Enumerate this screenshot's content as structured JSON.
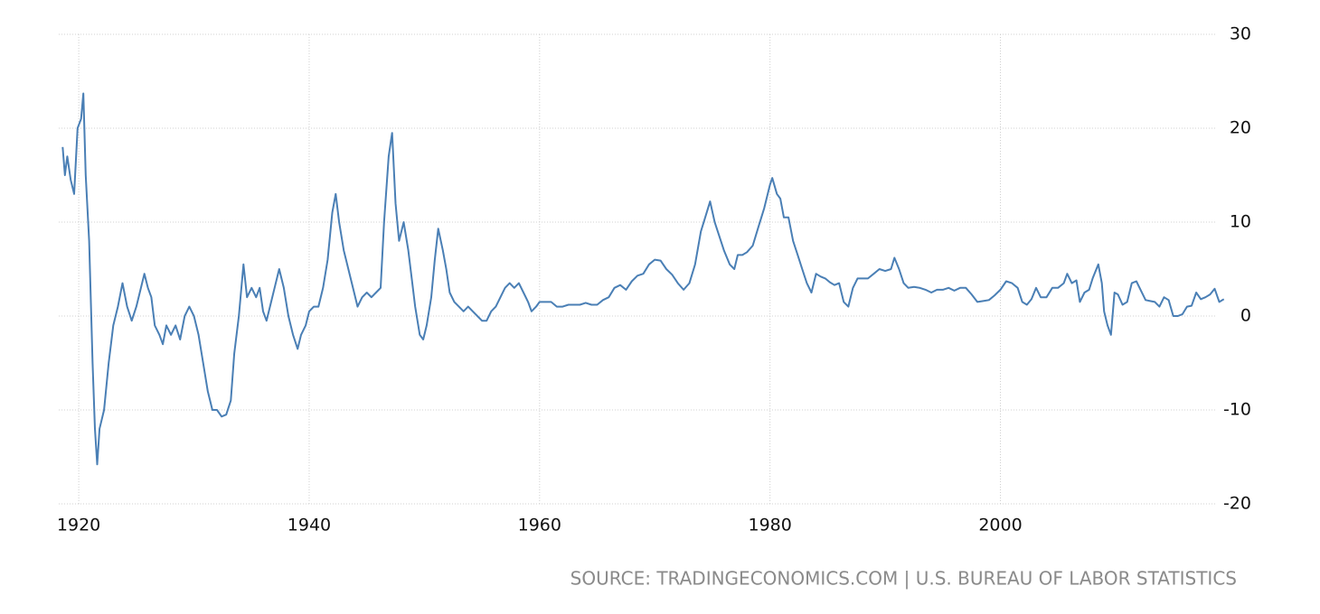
{
  "chart_data": {
    "type": "line",
    "source": "SOURCE: TRADINGECONOMICS.COM | U.S. BUREAU OF LABOR STATISTICS",
    "color": "#4a7fb5",
    "grid": true,
    "xlim": [
      1918.5,
      2019.5
    ],
    "xticks": [
      1920,
      1940,
      1960,
      1980,
      2000
    ],
    "ylim": [
      -20,
      30
    ],
    "yticks": [
      -20,
      -10,
      0,
      10,
      20,
      30
    ],
    "x": [
      1918.6,
      1918.8,
      1919.0,
      1919.3,
      1919.6,
      1919.9,
      1920.2,
      1920.4,
      1920.6,
      1920.9,
      1921.2,
      1921.4,
      1921.6,
      1921.8,
      1922.2,
      1922.6,
      1923.0,
      1923.4,
      1923.8,
      1924.2,
      1924.6,
      1925.0,
      1925.4,
      1925.7,
      1926.0,
      1926.3,
      1926.6,
      1927.0,
      1927.3,
      1927.6,
      1928.0,
      1928.4,
      1928.8,
      1929.2,
      1929.6,
      1930.0,
      1930.4,
      1930.8,
      1931.2,
      1931.6,
      1932.0,
      1932.4,
      1932.8,
      1933.2,
      1933.5,
      1933.9,
      1934.3,
      1934.6,
      1935.0,
      1935.4,
      1935.7,
      1936.0,
      1936.3,
      1936.7,
      1937.0,
      1937.4,
      1937.8,
      1938.2,
      1938.6,
      1939.0,
      1939.3,
      1939.7,
      1940.0,
      1940.4,
      1940.8,
      1941.2,
      1941.6,
      1942.0,
      1942.3,
      1942.6,
      1943.0,
      1943.4,
      1943.8,
      1944.2,
      1944.6,
      1945.0,
      1945.4,
      1945.8,
      1946.2,
      1946.5,
      1946.9,
      1947.2,
      1947.5,
      1947.8,
      1948.2,
      1948.6,
      1948.9,
      1949.2,
      1949.6,
      1949.9,
      1950.2,
      1950.6,
      1950.9,
      1951.2,
      1951.6,
      1951.9,
      1952.2,
      1952.6,
      1953.0,
      1953.4,
      1953.8,
      1954.2,
      1954.6,
      1955.0,
      1955.4,
      1955.8,
      1956.2,
      1956.6,
      1957.0,
      1957.4,
      1957.8,
      1958.2,
      1958.6,
      1959.0,
      1959.3,
      1959.7,
      1960.0,
      1960.5,
      1961.0,
      1961.5,
      1962.0,
      1962.5,
      1963.0,
      1963.5,
      1964.0,
      1964.5,
      1965.0,
      1965.5,
      1966.0,
      1966.5,
      1967.0,
      1967.5,
      1968.0,
      1968.5,
      1969.0,
      1969.5,
      1970.0,
      1970.5,
      1971.0,
      1971.5,
      1972.0,
      1972.5,
      1973.0,
      1973.5,
      1974.0,
      1974.5,
      1974.8,
      1975.2,
      1975.6,
      1976.0,
      1976.5,
      1976.9,
      1977.2,
      1977.6,
      1978.0,
      1978.5,
      1979.0,
      1979.5,
      1980.0,
      1980.2,
      1980.6,
      1980.9,
      1981.2,
      1981.6,
      1982.0,
      1982.4,
      1982.8,
      1983.2,
      1983.6,
      1984.0,
      1984.4,
      1984.8,
      1985.2,
      1985.6,
      1986.0,
      1986.4,
      1986.8,
      1987.2,
      1987.6,
      1988.0,
      1988.5,
      1989.0,
      1989.5,
      1990.0,
      1990.5,
      1990.8,
      1991.2,
      1991.6,
      1992.0,
      1992.5,
      1993.0,
      1993.5,
      1994.0,
      1994.5,
      1995.0,
      1995.5,
      1996.0,
      1996.5,
      1997.0,
      1997.5,
      1998.0,
      1998.5,
      1999.0,
      1999.5,
      2000.0,
      2000.5,
      2001.0,
      2001.5,
      2001.9,
      2002.3,
      2002.7,
      2003.1,
      2003.5,
      2004.0,
      2004.5,
      2005.0,
      2005.5,
      2005.8,
      2006.2,
      2006.6,
      2006.9,
      2007.3,
      2007.7,
      2008.0,
      2008.5,
      2008.8,
      2009.0,
      2009.3,
      2009.6,
      2009.9,
      2010.2,
      2010.6,
      2011.0,
      2011.4,
      2011.8,
      2012.2,
      2012.6,
      2013.0,
      2013.4,
      2013.8,
      2014.2,
      2014.6,
      2015.0,
      2015.4,
      2015.8,
      2016.2,
      2016.6,
      2017.0,
      2017.4,
      2017.8,
      2018.2,
      2018.6,
      2019.0,
      2019.4
    ],
    "values": [
      18,
      15,
      17,
      14.5,
      13,
      20,
      21,
      23.7,
      15,
      8,
      -5,
      -12,
      -15.8,
      -12,
      -10,
      -5,
      -1,
      1,
      3.5,
      1,
      -0.5,
      1,
      3,
      4.5,
      3,
      2,
      -1,
      -2,
      -3,
      -1,
      -2,
      -1,
      -2.5,
      0,
      1,
      0,
      -2,
      -5,
      -8,
      -10,
      -10,
      -10.7,
      -10.5,
      -9,
      -4,
      0,
      5.5,
      2,
      3,
      2,
      3,
      0.5,
      -0.5,
      1.5,
      3,
      5,
      3,
      0,
      -2,
      -3.5,
      -2,
      -1,
      0.5,
      1,
      1,
      3,
      6,
      11,
      13,
      10,
      7,
      5,
      3,
      1,
      2,
      2.5,
      2,
      2.5,
      3,
      10,
      17,
      19.5,
      12,
      8,
      10,
      7,
      4,
      1,
      -2,
      -2.5,
      -1,
      2,
      6,
      9.3,
      7,
      5,
      2.5,
      1.5,
      1,
      0.5,
      1,
      0.5,
      0,
      -0.5,
      -0.5,
      0.5,
      1,
      2,
      3,
      3.5,
      3,
      3.5,
      2.5,
      1.5,
      0.5,
      1,
      1.5,
      1.5,
      1.5,
      1,
      1,
      1.2,
      1.2,
      1.2,
      1.4,
      1.2,
      1.2,
      1.7,
      2,
      3,
      3.3,
      2.8,
      3.7,
      4.3,
      4.5,
      5.5,
      6,
      5.9,
      5,
      4.4,
      3.5,
      2.8,
      3.5,
      5.5,
      9,
      11,
      12.2,
      10,
      8.5,
      7,
      5.5,
      5,
      6.5,
      6.5,
      6.8,
      7.5,
      9.5,
      11.5,
      14,
      14.7,
      13,
      12.5,
      10.5,
      10.5,
      8,
      6.5,
      5,
      3.5,
      2.5,
      4.5,
      4.2,
      4,
      3.6,
      3.3,
      3.5,
      1.5,
      1,
      3,
      4,
      4,
      4,
      4.5,
      5,
      4.8,
      5,
      6.2,
      5,
      3.5,
      3,
      3.1,
      3,
      2.8,
      2.5,
      2.8,
      2.8,
      3,
      2.7,
      3,
      3,
      2.3,
      1.5,
      1.6,
      1.7,
      2.2,
      2.8,
      3.7,
      3.5,
      3,
      1.5,
      1.2,
      1.8,
      3,
      2,
      2,
      3,
      3,
      3.5,
      4.5,
      3.5,
      3.8,
      1.5,
      2.5,
      2.8,
      4,
      5.5,
      3.5,
      0.5,
      -1,
      -2,
      2.5,
      2.3,
      1.2,
      1.5,
      3.5,
      3.7,
      2.7,
      1.7,
      1.6,
      1.5,
      1,
      2,
      1.7,
      0,
      0,
      0.2,
      1,
      1.1,
      2.5,
      1.8,
      2,
      2.3,
      2.9,
      1.5,
      1.8
    ]
  }
}
